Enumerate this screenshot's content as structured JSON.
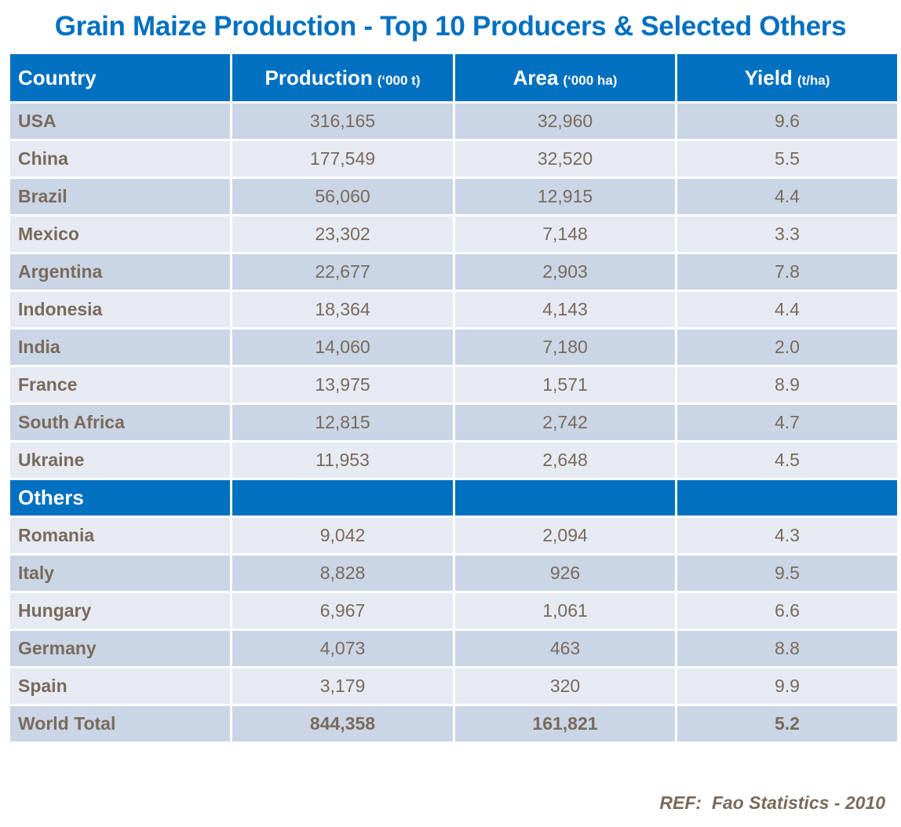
{
  "title": "Grain Maize Production - Top 10 Producers & Selected Others",
  "header": {
    "country": "Country",
    "production": "Production",
    "production_unit": "(‘000 t)",
    "area": "Area",
    "area_unit": "(‘000 ha)",
    "yield": "Yield",
    "yield_unit": "(t/ha)"
  },
  "top10": [
    {
      "country": "USA",
      "production": "316,165",
      "area": "32,960",
      "yield": "9.6"
    },
    {
      "country": "China",
      "production": "177,549",
      "area": "32,520",
      "yield": "5.5"
    },
    {
      "country": "Brazil",
      "production": "56,060",
      "area": "12,915",
      "yield": "4.4"
    },
    {
      "country": "Mexico",
      "production": "23,302",
      "area": "7,148",
      "yield": "3.3"
    },
    {
      "country": "Argentina",
      "production": "22,677",
      "area": "2,903",
      "yield": "7.8"
    },
    {
      "country": "Indonesia",
      "production": "18,364",
      "area": "4,143",
      "yield": "4.4"
    },
    {
      "country": "India",
      "production": "14,060",
      "area": "7,180",
      "yield": "2.0"
    },
    {
      "country": "France",
      "production": "13,975",
      "area": "1,571",
      "yield": "8.9"
    },
    {
      "country": "South Africa",
      "production": "12,815",
      "area": "2,742",
      "yield": "4.7"
    },
    {
      "country": "Ukraine",
      "production": "11,953",
      "area": "2,648",
      "yield": "4.5"
    }
  ],
  "others_label": "Others",
  "others": [
    {
      "country": "Romania",
      "production": "9,042",
      "area": "2,094",
      "yield": "4.3"
    },
    {
      "country": "Italy",
      "production": "8,828",
      "area": "926",
      "yield": "9.5"
    },
    {
      "country": "Hungary",
      "production": "6,967",
      "area": "1,061",
      "yield": "6.6"
    },
    {
      "country": "Germany",
      "production": "4,073",
      "area": "463",
      "yield": "8.8"
    },
    {
      "country": "Spain",
      "production": "3,179",
      "area": "320",
      "yield": "9.9"
    }
  ],
  "total": {
    "country": "World Total",
    "production": "844,358",
    "area": "161,821",
    "yield": "5.2"
  },
  "reference": "REF:  Fao Statistics - 2010",
  "colors": {
    "accent": "#0070C0",
    "row_dark": "#CAD5E6",
    "row_light": "#E6EAF3",
    "text": "#7a6a5a"
  }
}
